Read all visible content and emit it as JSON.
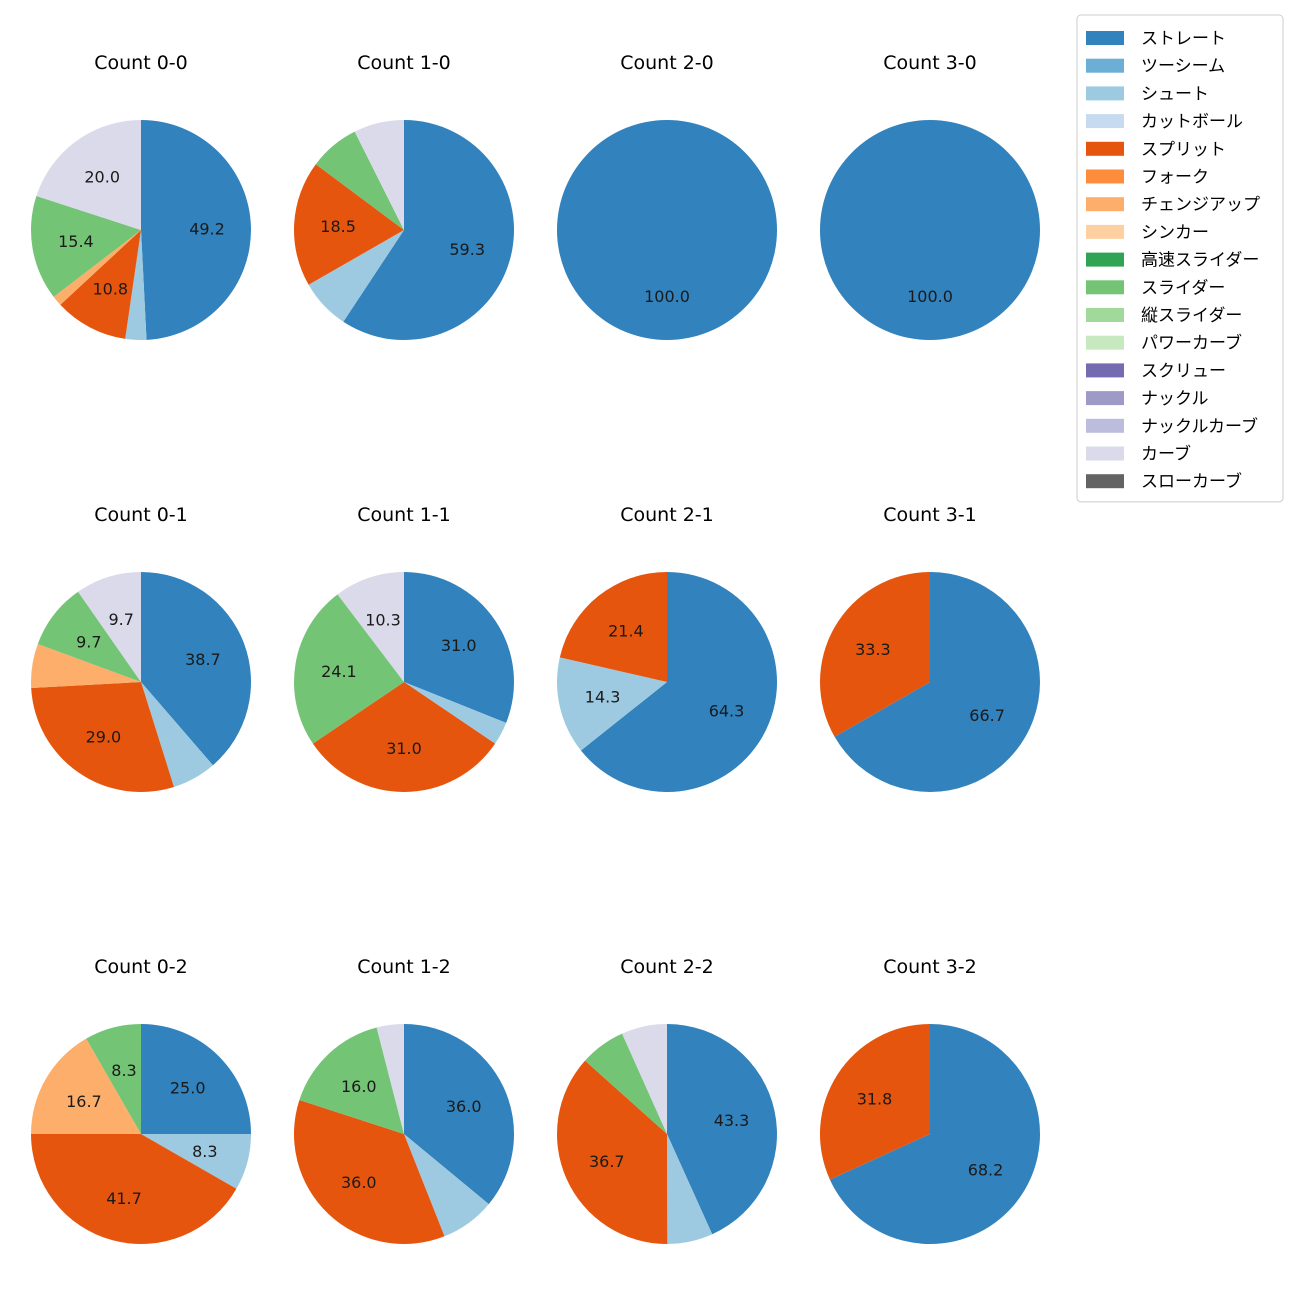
{
  "colors": {
    "ストレート": "#3182bd",
    "ツーシーム": "#6baed6",
    "シュート": "#9ecae1",
    "カットボール": "#c6dbef",
    "スプリット": "#e6550d",
    "フォーク": "#fd8d3c",
    "チェンジアップ": "#fdae6b",
    "シンカー": "#fdd0a2",
    "高速スライダー": "#31a354",
    "スライダー": "#74c476",
    "縦スライダー": "#a1d99b",
    "パワーカーブ": "#c7e9c0",
    "スクリュー": "#756bb1",
    "ナックル": "#9e9ac8",
    "ナックルカーブ": "#bcbddc",
    "カーブ": "#dadaeb",
    "スローカーブ": "#636363"
  },
  "chart_data": {
    "type": "pie",
    "legend": {
      "placement": "top-right",
      "entries": [
        "ストレート",
        "ツーシーム",
        "シュート",
        "カットボール",
        "スプリット",
        "フォーク",
        "チェンジアップ",
        "シンカー",
        "高速スライダー",
        "スライダー",
        "縦スライダー",
        "パワーカーブ",
        "スクリュー",
        "ナックル",
        "ナックルカーブ",
        "カーブ",
        "スローカーブ"
      ]
    },
    "panels": [
      {
        "title": "Count 0-0",
        "slices": [
          {
            "label": "ストレート",
            "value": 49.2,
            "text": "49.2"
          },
          {
            "label": "シュート",
            "value": 3.1,
            "text": ""
          },
          {
            "label": "スプリット",
            "value": 10.8,
            "text": "10.8"
          },
          {
            "label": "チェンジアップ",
            "value": 1.5,
            "text": ""
          },
          {
            "label": "スライダー",
            "value": 15.4,
            "text": "15.4"
          },
          {
            "label": "カーブ",
            "value": 20.0,
            "text": "20.0"
          }
        ]
      },
      {
        "title": "Count 1-0",
        "slices": [
          {
            "label": "ストレート",
            "value": 59.3,
            "text": "59.3"
          },
          {
            "label": "シュート",
            "value": 7.4,
            "text": ""
          },
          {
            "label": "スプリット",
            "value": 18.5,
            "text": "18.5"
          },
          {
            "label": "スライダー",
            "value": 7.4,
            "text": ""
          },
          {
            "label": "カーブ",
            "value": 7.4,
            "text": ""
          }
        ]
      },
      {
        "title": "Count 2-0",
        "slices": [
          {
            "label": "ストレート",
            "value": 100.0,
            "text": "100.0"
          }
        ]
      },
      {
        "title": "Count 3-0",
        "slices": [
          {
            "label": "ストレート",
            "value": 100.0,
            "text": "100.0"
          }
        ]
      },
      {
        "title": "Count 0-1",
        "slices": [
          {
            "label": "ストレート",
            "value": 38.7,
            "text": "38.7"
          },
          {
            "label": "シュート",
            "value": 6.5,
            "text": ""
          },
          {
            "label": "スプリット",
            "value": 29.0,
            "text": "29.0"
          },
          {
            "label": "チェンジアップ",
            "value": 6.5,
            "text": ""
          },
          {
            "label": "スライダー",
            "value": 9.7,
            "text": "9.7"
          },
          {
            "label": "カーブ",
            "value": 9.7,
            "text": "9.7"
          }
        ]
      },
      {
        "title": "Count 1-1",
        "slices": [
          {
            "label": "ストレート",
            "value": 31.0,
            "text": "31.0"
          },
          {
            "label": "シュート",
            "value": 3.4,
            "text": ""
          },
          {
            "label": "スプリット",
            "value": 31.0,
            "text": "31.0"
          },
          {
            "label": "スライダー",
            "value": 24.1,
            "text": "24.1"
          },
          {
            "label": "カーブ",
            "value": 10.3,
            "text": "10.3"
          }
        ]
      },
      {
        "title": "Count 2-1",
        "slices": [
          {
            "label": "ストレート",
            "value": 64.3,
            "text": "64.3"
          },
          {
            "label": "シュート",
            "value": 14.3,
            "text": "14.3"
          },
          {
            "label": "スプリット",
            "value": 21.4,
            "text": "21.4"
          }
        ]
      },
      {
        "title": "Count 3-1",
        "slices": [
          {
            "label": "ストレート",
            "value": 66.7,
            "text": "66.7"
          },
          {
            "label": "スプリット",
            "value": 33.3,
            "text": "33.3"
          }
        ]
      },
      {
        "title": "Count 0-2",
        "slices": [
          {
            "label": "ストレート",
            "value": 25.0,
            "text": "25.0"
          },
          {
            "label": "シュート",
            "value": 8.3,
            "text": "8.3"
          },
          {
            "label": "スプリット",
            "value": 41.7,
            "text": "41.7"
          },
          {
            "label": "チェンジアップ",
            "value": 16.7,
            "text": "16.7"
          },
          {
            "label": "スライダー",
            "value": 8.3,
            "text": "8.3"
          }
        ]
      },
      {
        "title": "Count 1-2",
        "slices": [
          {
            "label": "ストレート",
            "value": 36.0,
            "text": "36.0"
          },
          {
            "label": "シュート",
            "value": 8.0,
            "text": ""
          },
          {
            "label": "スプリット",
            "value": 36.0,
            "text": "36.0"
          },
          {
            "label": "スライダー",
            "value": 16.0,
            "text": "16.0"
          },
          {
            "label": "カーブ",
            "value": 4.0,
            "text": ""
          }
        ]
      },
      {
        "title": "Count 2-2",
        "slices": [
          {
            "label": "ストレート",
            "value": 43.3,
            "text": "43.3"
          },
          {
            "label": "シュート",
            "value": 6.7,
            "text": ""
          },
          {
            "label": "スプリット",
            "value": 36.7,
            "text": "36.7"
          },
          {
            "label": "スライダー",
            "value": 6.7,
            "text": ""
          },
          {
            "label": "カーブ",
            "value": 6.7,
            "text": ""
          }
        ]
      },
      {
        "title": "Count 3-2",
        "slices": [
          {
            "label": "ストレート",
            "value": 68.2,
            "text": "68.2"
          },
          {
            "label": "スプリット",
            "value": 31.8,
            "text": "31.8"
          }
        ]
      }
    ]
  }
}
